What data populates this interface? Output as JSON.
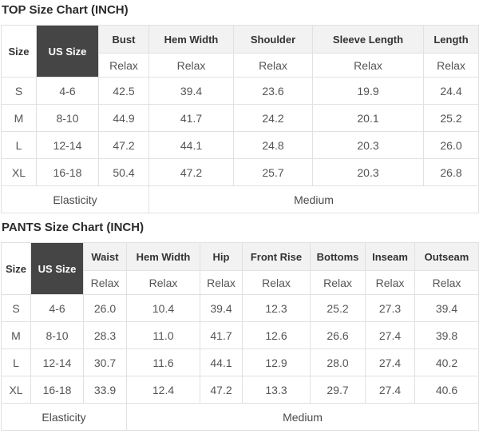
{
  "colors": {
    "dark_cell": "#454545",
    "header_bg": "#f2f2f2",
    "border": "#e1e1e1",
    "title_text": "#2b2b2b",
    "body_text": "#555555"
  },
  "top_chart": {
    "title": "TOP Size Chart (INCH)",
    "size_label": "Size",
    "us_size_label": "US Size",
    "fit_label": "Relax",
    "columns": [
      "Bust",
      "Hem Width",
      "Shoulder",
      "Sleeve Length",
      "Length"
    ],
    "rows": [
      {
        "size": "S",
        "us_size": "4-6",
        "values": [
          "42.5",
          "39.4",
          "23.6",
          "19.9",
          "24.4"
        ]
      },
      {
        "size": "M",
        "us_size": "8-10",
        "values": [
          "44.9",
          "41.7",
          "24.2",
          "20.1",
          "25.2"
        ]
      },
      {
        "size": "L",
        "us_size": "12-14",
        "values": [
          "47.2",
          "44.1",
          "24.8",
          "20.3",
          "26.0"
        ]
      },
      {
        "size": "XL",
        "us_size": "16-18",
        "values": [
          "50.4",
          "47.2",
          "25.7",
          "20.3",
          "26.8"
        ]
      }
    ],
    "footer": {
      "label": "Elasticity",
      "value": "Medium"
    }
  },
  "pants_chart": {
    "title": "PANTS Size Chart (INCH)",
    "size_label": "Size",
    "us_size_label": "US Size",
    "fit_label": "Relax",
    "columns": [
      "Waist",
      "Hem Width",
      "Hip",
      "Front Rise",
      "Bottoms",
      "Inseam",
      "Outseam"
    ],
    "rows": [
      {
        "size": "S",
        "us_size": "4-6",
        "values": [
          "26.0",
          "10.4",
          "39.4",
          "12.3",
          "25.2",
          "27.3",
          "39.4"
        ]
      },
      {
        "size": "M",
        "us_size": "8-10",
        "values": [
          "28.3",
          "11.0",
          "41.7",
          "12.6",
          "26.6",
          "27.4",
          "39.8"
        ]
      },
      {
        "size": "L",
        "us_size": "12-14",
        "values": [
          "30.7",
          "11.6",
          "44.1",
          "12.9",
          "28.0",
          "27.4",
          "40.2"
        ]
      },
      {
        "size": "XL",
        "us_size": "16-18",
        "values": [
          "33.9",
          "12.4",
          "47.2",
          "13.3",
          "29.7",
          "27.4",
          "40.6"
        ]
      }
    ],
    "footer": {
      "label": "Elasticity",
      "value": "Medium"
    }
  }
}
